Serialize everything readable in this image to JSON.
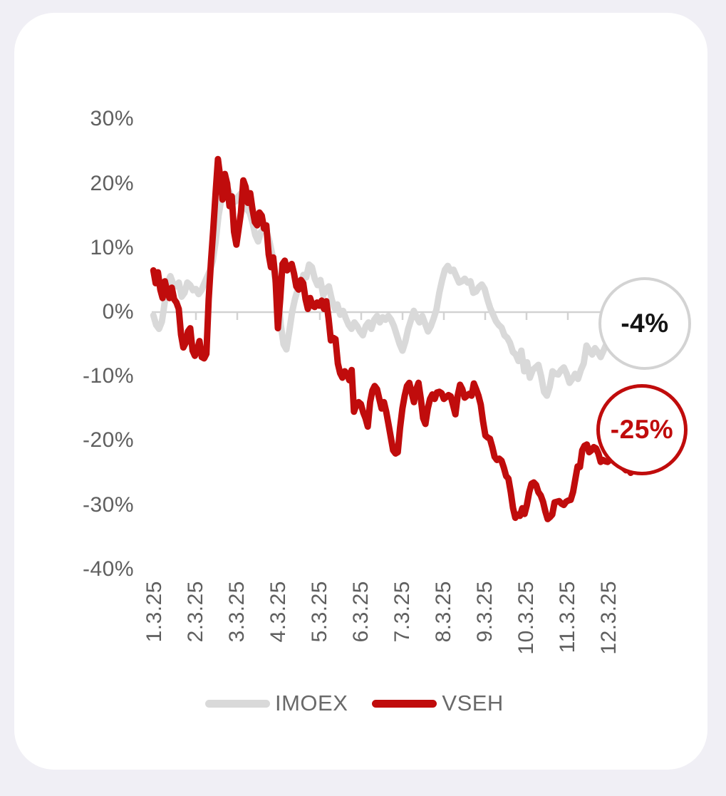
{
  "window": {
    "background": "#f0eff5",
    "card_background": "#ffffff"
  },
  "chart_data": {
    "type": "line",
    "title": "",
    "xlabel": "",
    "ylabel": "",
    "x_tick_labels": [
      "1.3.25",
      "2.3.25",
      "3.3.25",
      "4.3.25",
      "5.3.25",
      "6.3.25",
      "7.3.25",
      "8.3.25",
      "9.3.25",
      "10.3.25",
      "11.3.25",
      "12.3.25"
    ],
    "y_tick_labels": [
      "30%",
      "20%",
      "10%",
      "0%",
      "-10%",
      "-20%",
      "-30%",
      "-40%"
    ],
    "y_tick_values": [
      30,
      20,
      10,
      0,
      -10,
      -20,
      -30,
      -40
    ],
    "ylim": [
      -40,
      30
    ],
    "grid": "zero-line-only",
    "axis_color": "#d2d2d2",
    "tick_label_color": "#5f5f5f",
    "legend_position": "bottom",
    "series": [
      {
        "name": "IMOEX",
        "color": "#d9d9d9",
        "unit": "%",
        "x_start": 0.97,
        "x_end": 12.0,
        "values": [
          -0.5,
          -2.0,
          -2.6,
          -1.5,
          1.5,
          4.5,
          5.6,
          4.4,
          4.0,
          4.6,
          2.4,
          3.0,
          4.6,
          4.2,
          3.4,
          3.6,
          2.8,
          3.4,
          4.5,
          5.5,
          6.5,
          8.0,
          11.0,
          15.0,
          17.5,
          19.0,
          19.5,
          18.5,
          17.5,
          17.2,
          18.0,
          18.5,
          17.0,
          16.0,
          15.5,
          14.0,
          12.0,
          11.0,
          12.5,
          13.0,
          12.5,
          11.0,
          9.0,
          5.0,
          3.0,
          -2.0,
          -5.0,
          -5.8,
          -3.0,
          0.0,
          2.0,
          3.5,
          4.3,
          5.8,
          5.4,
          7.4,
          7.0,
          5.2,
          4.2,
          5.0,
          2.6,
          3.6,
          4.0,
          2.0,
          0.6,
          1.2,
          -0.4,
          0.2,
          -1.0,
          -2.0,
          -2.6,
          -1.6,
          -2.2,
          -3.0,
          -3.6,
          -2.2,
          -1.6,
          -2.6,
          -1.2,
          -0.6,
          -1.6,
          -0.8,
          -1.2,
          -0.6,
          -1.2,
          -2.2,
          -3.6,
          -5.0,
          -6.0,
          -4.6,
          -2.6,
          -1.2,
          0.2,
          -0.8,
          -1.6,
          -0.6,
          -1.8,
          -3.0,
          -2.2,
          -1.0,
          0.4,
          3.0,
          5.0,
          6.6,
          7.2,
          6.4,
          6.6,
          5.6,
          4.6,
          4.8,
          5.2,
          4.6,
          4.8,
          3.0,
          3.2,
          3.9,
          4.3,
          3.6,
          2.0,
          0.6,
          -0.4,
          -1.4,
          -2.0,
          -2.4,
          -3.6,
          -4.0,
          -4.8,
          -6.2,
          -6.6,
          -7.6,
          -6.0,
          -9.2,
          -7.8,
          -10.2,
          -9.0,
          -8.6,
          -8.2,
          -10.0,
          -12.4,
          -13.0,
          -11.6,
          -9.2,
          -9.6,
          -9.7,
          -9.0,
          -8.6,
          -9.6,
          -11.0,
          -10.4,
          -9.6,
          -10.4,
          -9.0,
          -8.0,
          -5.2,
          -6.0,
          -6.6,
          -5.6,
          -6.2,
          -7.0,
          -6.0,
          -5.0,
          -4.0
        ]
      },
      {
        "name": "VSEH",
        "color": "#c00c0c",
        "unit": "%",
        "x_start": 0.97,
        "x_end": 12.52,
        "values": [
          6.5,
          4.5,
          6.2,
          3.5,
          2.2,
          4.8,
          3.2,
          2.2,
          3.8,
          2.0,
          1.5,
          0.5,
          -3.5,
          -5.5,
          -4.8,
          -3.0,
          -2.5,
          -6.0,
          -6.8,
          -5.9,
          -4.5,
          -7.0,
          -7.2,
          -6.5,
          2.0,
          8.0,
          13.0,
          18.5,
          23.8,
          21.0,
          17.5,
          21.5,
          20.0,
          16.5,
          18.0,
          12.5,
          10.5,
          13.0,
          15.5,
          20.5,
          19.5,
          17.0,
          18.5,
          16.0,
          14.0,
          13.5,
          15.5,
          15.0,
          13.0,
          13.5,
          9.0,
          7.0,
          8.5,
          5.0,
          -2.5,
          2.0,
          7.5,
          8.0,
          6.5,
          7.0,
          7.5,
          6.0,
          4.0,
          3.5,
          5.0,
          4.5,
          2.0,
          0.5,
          2.2,
          1.0,
          0.8,
          1.5,
          1.0,
          1.8,
          0.5,
          1.7,
          -1.0,
          -4.4,
          -4.0,
          -4.2,
          -8.0,
          -9.5,
          -10.2,
          -9.2,
          -9.6,
          -10.6,
          -9.0,
          -15.5,
          -14.5,
          -14.0,
          -14.3,
          -15.6,
          -16.5,
          -17.8,
          -14.0,
          -12.2,
          -11.5,
          -12.0,
          -13.5,
          -15.0,
          -14.0,
          -15.5,
          -17.5,
          -19.5,
          -21.5,
          -22.0,
          -21.8,
          -18.0,
          -15.0,
          -13.0,
          -11.5,
          -11.0,
          -12.5,
          -14.0,
          -12.0,
          -11.0,
          -13.5,
          -16.5,
          -17.4,
          -15.0,
          -13.5,
          -12.8,
          -13.5,
          -12.5,
          -12.4,
          -12.6,
          -13.5,
          -13.2,
          -12.9,
          -13.1,
          -14.5,
          -15.9,
          -13.0,
          -11.3,
          -12.0,
          -13.3,
          -13.0,
          -12.7,
          -13.0,
          -11.1,
          -12.0,
          -13.0,
          -14.4,
          -17.0,
          -19.2,
          -19.5,
          -19.7,
          -21.0,
          -22.5,
          -23.0,
          -22.8,
          -23.1,
          -24.2,
          -25.5,
          -25.9,
          -28.0,
          -30.5,
          -32.0,
          -31.5,
          -31.7,
          -30.5,
          -31.4,
          -30.0,
          -28.0,
          -26.7,
          -26.5,
          -26.9,
          -28.0,
          -28.5,
          -29.5,
          -31.0,
          -32.2,
          -31.9,
          -31.5,
          -29.6,
          -29.5,
          -29.4,
          -29.8,
          -30.0,
          -29.5,
          -29.3,
          -29.2,
          -28.0,
          -26.0,
          -24.0,
          -24.1,
          -21.5,
          -20.8,
          -20.6,
          -21.8,
          -21.5,
          -21.0,
          -21.2,
          -22.0,
          -23.3,
          -23.0,
          -23.2,
          -23.3,
          -23.0,
          -22.8,
          -23.0,
          -23.3,
          -23.6,
          -24.0,
          -24.3,
          -24.6,
          -24.5,
          -25.0
        ]
      }
    ]
  },
  "badges": [
    {
      "label": "-4%",
      "text_color": "#151515",
      "border_color": "#d3d3d3"
    },
    {
      "label": "-25%",
      "text_color": "#c00c0c",
      "border_color": "#c00c0c"
    }
  ]
}
